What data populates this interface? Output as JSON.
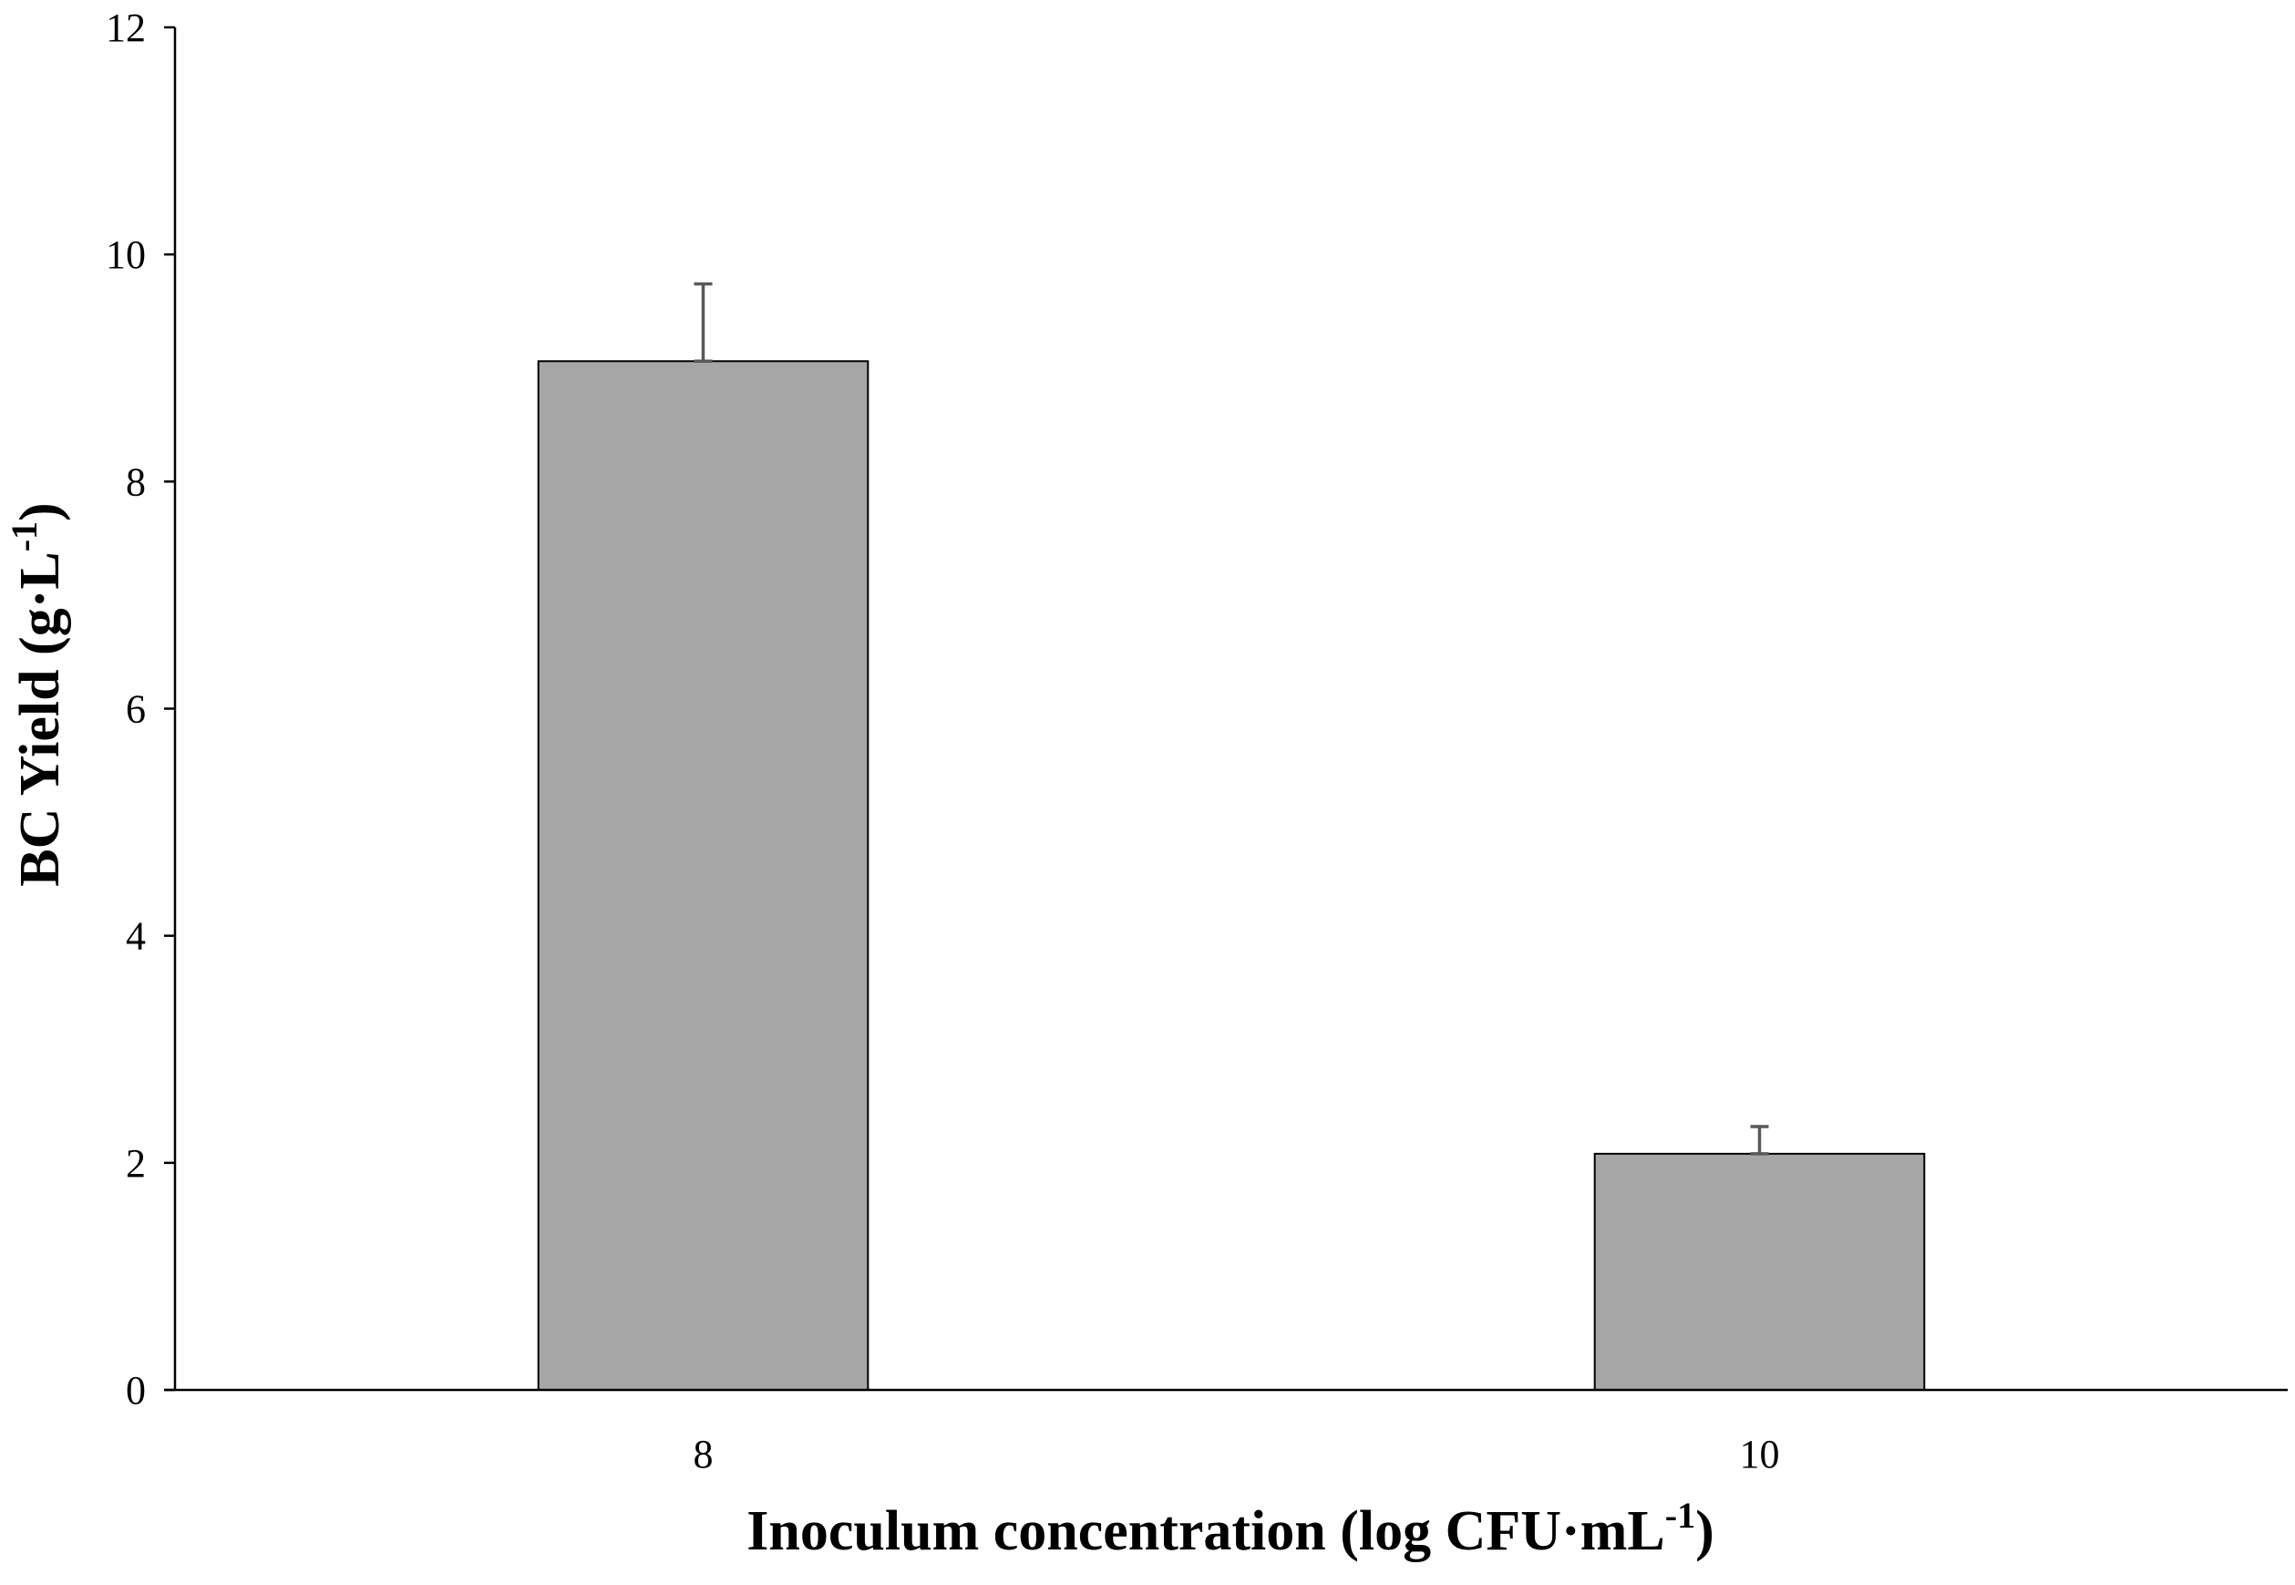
{
  "chart_data": {
    "type": "bar",
    "title": "",
    "categories": [
      "8",
      "10"
    ],
    "values": [
      9.06,
      2.08
    ],
    "errors": [
      0.68,
      0.24
    ],
    "xlabel": {
      "main": "Inoculum concentration (log CFU·mL",
      "sup": "-1",
      "close": ")"
    },
    "ylabel": {
      "main": "BC Yield (g·L",
      "sup": "-1",
      "close": ")"
    },
    "ylim": [
      0,
      12
    ],
    "yticks": [
      "0",
      "2",
      "4",
      "6",
      "8",
      "10",
      "12"
    ],
    "grid": false,
    "legend": "none",
    "colors": {
      "bar": "#a6a6a6",
      "bar_edge": "#000000",
      "error_bar": "#595959",
      "axis": "#000000"
    }
  }
}
